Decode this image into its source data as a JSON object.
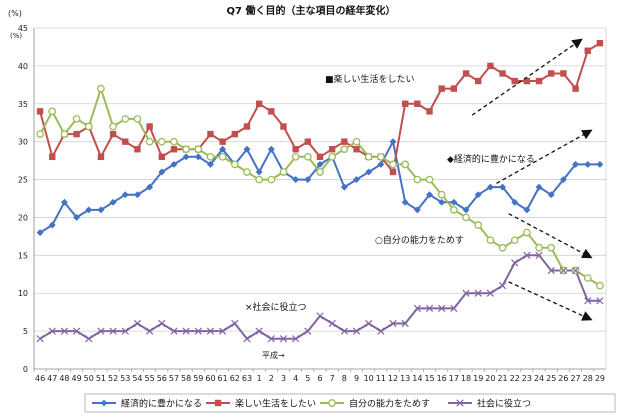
{
  "chart_data": {
    "type": "line",
    "title": "Q7 働く目的（主な項目の経年変化）",
    "ylabel": "(%)",
    "ylabel_small": "(%)",
    "ylim": [
      0,
      45
    ],
    "yticks": [
      0,
      5,
      10,
      15,
      20,
      25,
      30,
      35,
      40,
      45
    ],
    "categories": [
      "46",
      "47",
      "48",
      "49",
      "50",
      "51",
      "52",
      "53",
      "54",
      "55",
      "56",
      "57",
      "58",
      "59",
      "60",
      "61",
      "62",
      "63",
      "1",
      "2",
      "3",
      "4",
      "5",
      "6",
      "7",
      "8",
      "9",
      "10",
      "11",
      "12",
      "13",
      "14",
      "15",
      "16",
      "17",
      "18",
      "19",
      "20",
      "21",
      "22",
      "23",
      "24",
      "25",
      "26",
      "27",
      "28",
      "29"
    ],
    "era_note": "平成→",
    "series": [
      {
        "name": "経済的に豊かになる",
        "color": "#4472c4",
        "marker": "diamond",
        "values": [
          18,
          19,
          22,
          20,
          21,
          21,
          22,
          23,
          23,
          24,
          26,
          27,
          28,
          28,
          27,
          29,
          27,
          29,
          26,
          29,
          26,
          25,
          25,
          27,
          28,
          24,
          25,
          26,
          27,
          30,
          22,
          21,
          23,
          22,
          22,
          21,
          23,
          24,
          24,
          22,
          21,
          24,
          23,
          25,
          27,
          27,
          27
        ]
      },
      {
        "name": "楽しい生活をしたい",
        "color": "#c0504d",
        "marker": "square",
        "values": [
          34,
          28,
          31,
          31,
          32,
          28,
          31,
          30,
          29,
          32,
          28,
          29,
          29,
          29,
          31,
          30,
          31,
          32,
          35,
          34,
          32,
          29,
          30,
          28,
          29,
          30,
          29,
          28,
          28,
          26,
          35,
          35,
          34,
          37,
          37,
          39,
          38,
          40,
          39,
          38,
          38,
          38,
          39,
          39,
          37,
          42,
          43
        ]
      },
      {
        "name": "自分の能力をためす",
        "color": "#9bbb59",
        "marker": "circle",
        "values": [
          31,
          34,
          31,
          33,
          32,
          37,
          32,
          33,
          33,
          30,
          30,
          30,
          29,
          29,
          28,
          28,
          27,
          26,
          25,
          25,
          26,
          28,
          28,
          26,
          28,
          29,
          30,
          28,
          28,
          27,
          27,
          25,
          25,
          23,
          21,
          20,
          19,
          17,
          16,
          17,
          18,
          16,
          16,
          13,
          13,
          12,
          11
        ]
      },
      {
        "name": "社会に役立つ",
        "color": "#8064a2",
        "marker": "x",
        "values": [
          4,
          5,
          5,
          5,
          4,
          5,
          5,
          5,
          6,
          5,
          6,
          5,
          5,
          5,
          5,
          5,
          6,
          4,
          5,
          4,
          4,
          4,
          5,
          7,
          6,
          5,
          5,
          6,
          5,
          6,
          6,
          8,
          8,
          8,
          8,
          10,
          10,
          10,
          11,
          14,
          15,
          15,
          13,
          13,
          13,
          9,
          9
        ]
      }
    ],
    "annotations": [
      {
        "text": "■楽しい生活をしたい",
        "series": 1
      },
      {
        "text": "◆経済的に豊かになる",
        "series": 0
      },
      {
        "text": "○自分の能力をためす",
        "series": 2
      },
      {
        "text": "×社会に役立つ",
        "series": 3
      }
    ],
    "legend_position": "bottom"
  }
}
